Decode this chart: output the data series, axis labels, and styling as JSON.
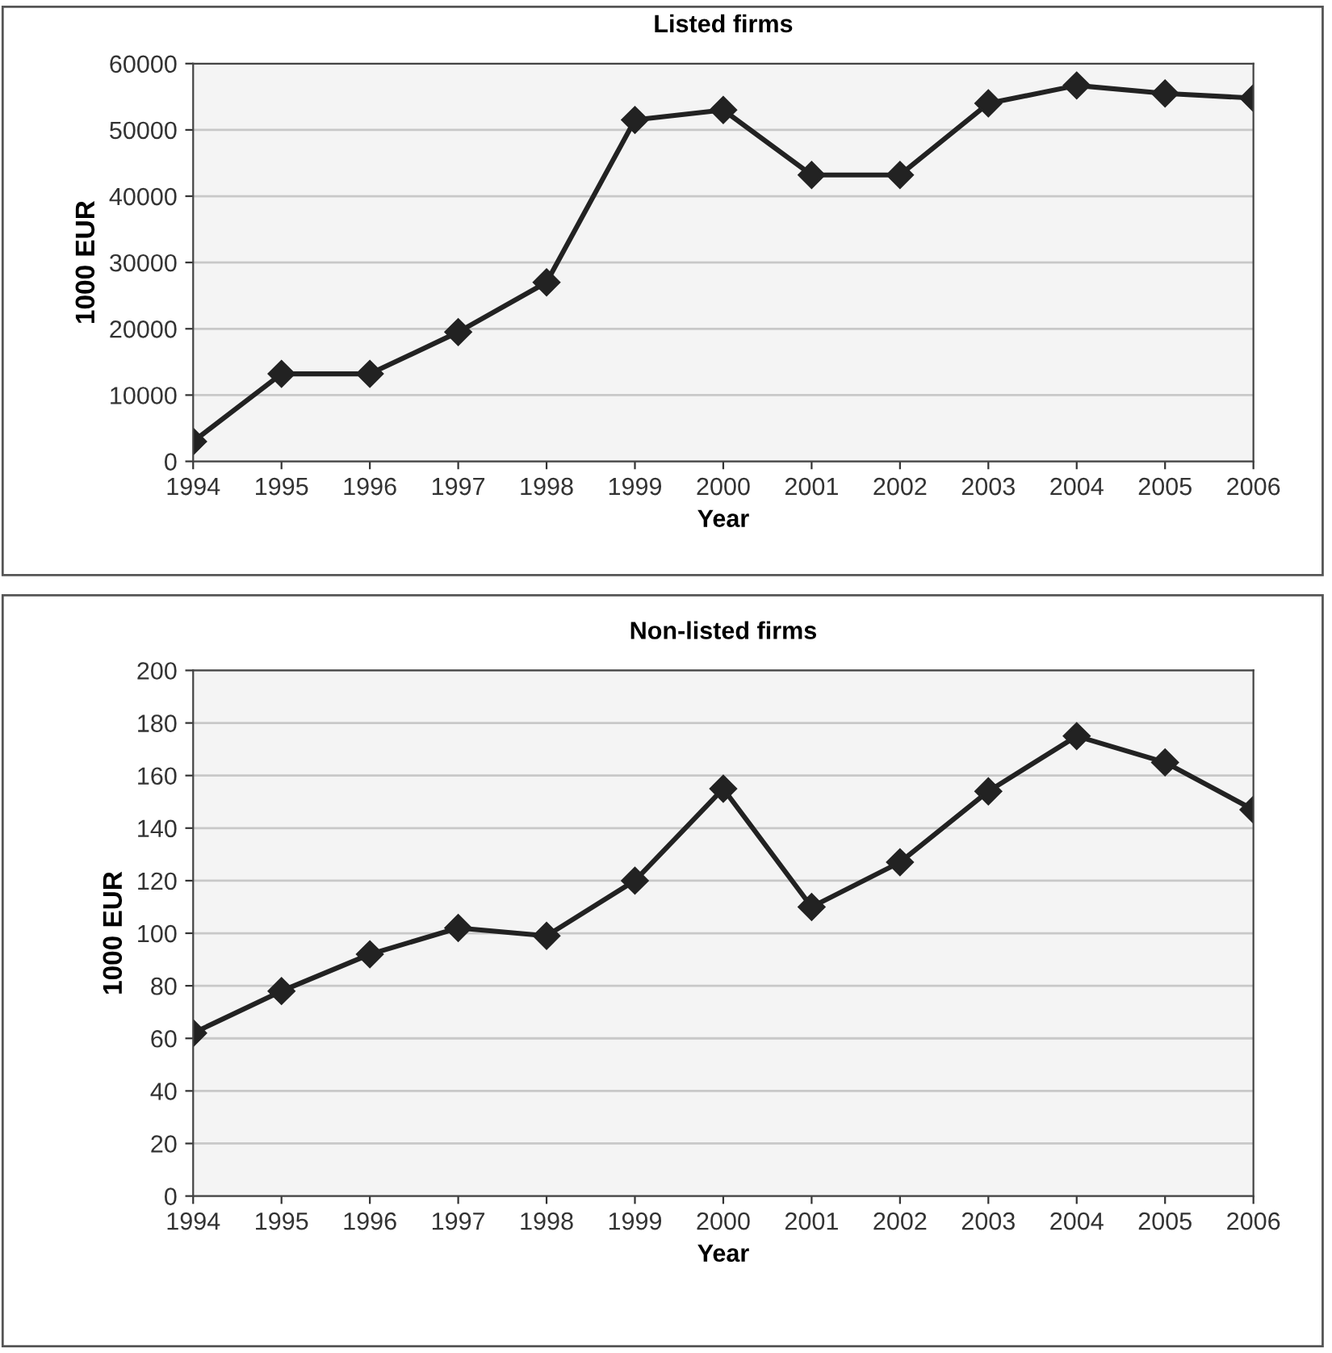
{
  "chart_data": [
    {
      "type": "line",
      "title": "Listed firms",
      "xlabel": "Year",
      "ylabel": "1000 EUR",
      "categories": [
        "1994",
        "1995",
        "1996",
        "1997",
        "1998",
        "1999",
        "2000",
        "2001",
        "2002",
        "2003",
        "2004",
        "2005",
        "2006"
      ],
      "series": [
        {
          "color": "#222222",
          "values": [
            3000,
            13200,
            13200,
            19500,
            27000,
            51500,
            53000,
            43200,
            43200,
            54000,
            56700,
            55500,
            54800
          ]
        }
      ],
      "ylim": [
        0,
        60000
      ],
      "yticks": [
        0,
        10000,
        20000,
        30000,
        40000,
        50000,
        60000
      ],
      "grid": "y",
      "marker": "diamond",
      "line_style": "solid",
      "legend": false
    },
    {
      "type": "line",
      "title": "Non-listed firms",
      "xlabel": "Year",
      "ylabel": "1000 EUR",
      "categories": [
        "1994",
        "1995",
        "1996",
        "1997",
        "1998",
        "1999",
        "2000",
        "2001",
        "2002",
        "2003",
        "2004",
        "2005",
        "2006"
      ],
      "series": [
        {
          "color": "#222222",
          "values": [
            62,
            78,
            92,
            102,
            99,
            120,
            155,
            110,
            127,
            154,
            175,
            165,
            147
          ]
        }
      ],
      "ylim": [
        0,
        200
      ],
      "yticks": [
        0,
        20,
        40,
        60,
        80,
        100,
        120,
        140,
        160,
        180,
        200
      ],
      "grid": "y",
      "marker": "diamond",
      "line_style": "solid",
      "legend": false
    }
  ]
}
